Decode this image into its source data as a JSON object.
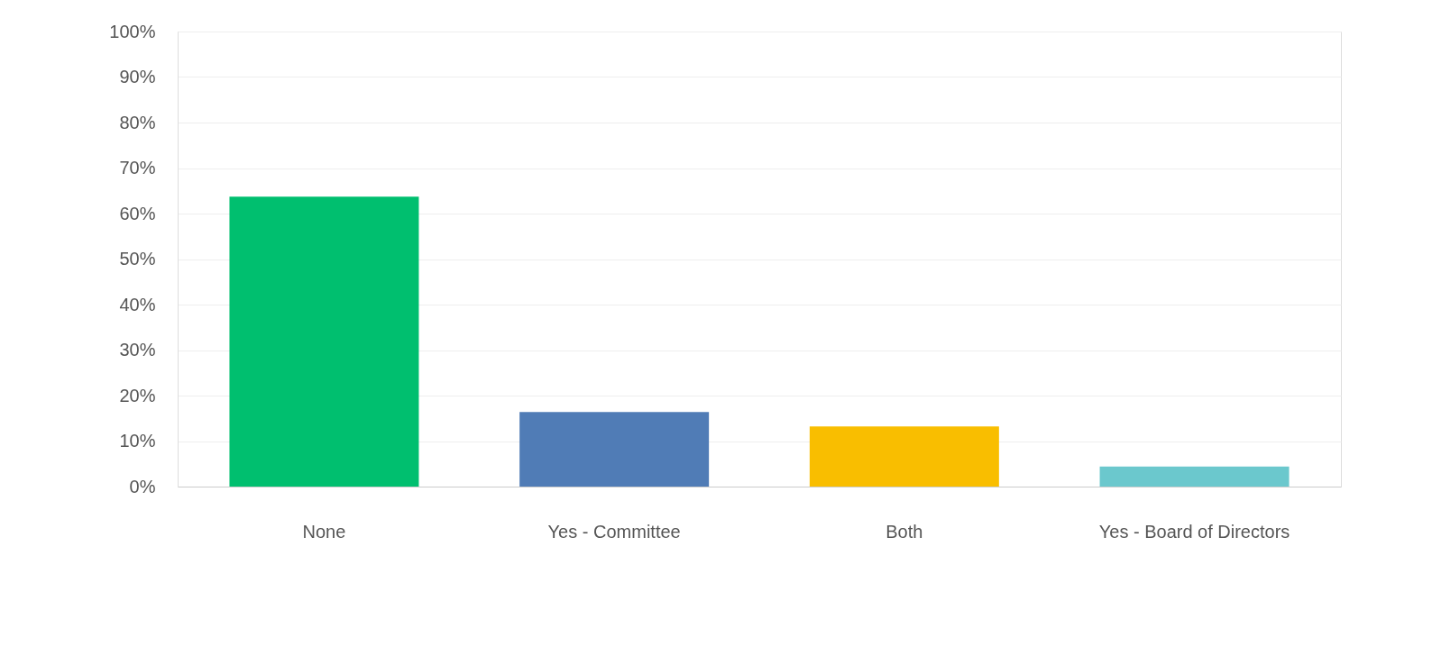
{
  "chart_data": {
    "type": "bar",
    "categories": [
      "None",
      "Yes - Committee",
      "Both",
      "Yes - Board of Directors"
    ],
    "values": [
      63.7,
      16.4,
      13.2,
      4.4
    ],
    "colors": [
      "#00bf6f",
      "#507cb6",
      "#f9be00",
      "#6bc8cd"
    ],
    "ylim": [
      0,
      100
    ],
    "yticks": [
      {
        "value": 0,
        "label": "0%"
      },
      {
        "value": 10,
        "label": "10%"
      },
      {
        "value": 20,
        "label": "20%"
      },
      {
        "value": 30,
        "label": "30%"
      },
      {
        "value": 40,
        "label": "40%"
      },
      {
        "value": 50,
        "label": "50%"
      },
      {
        "value": 60,
        "label": "60%"
      },
      {
        "value": 70,
        "label": "70%"
      },
      {
        "value": 80,
        "label": "80%"
      },
      {
        "value": 90,
        "label": "90%"
      },
      {
        "value": 100,
        "label": "100%"
      }
    ],
    "grid": "y",
    "legend": false
  }
}
